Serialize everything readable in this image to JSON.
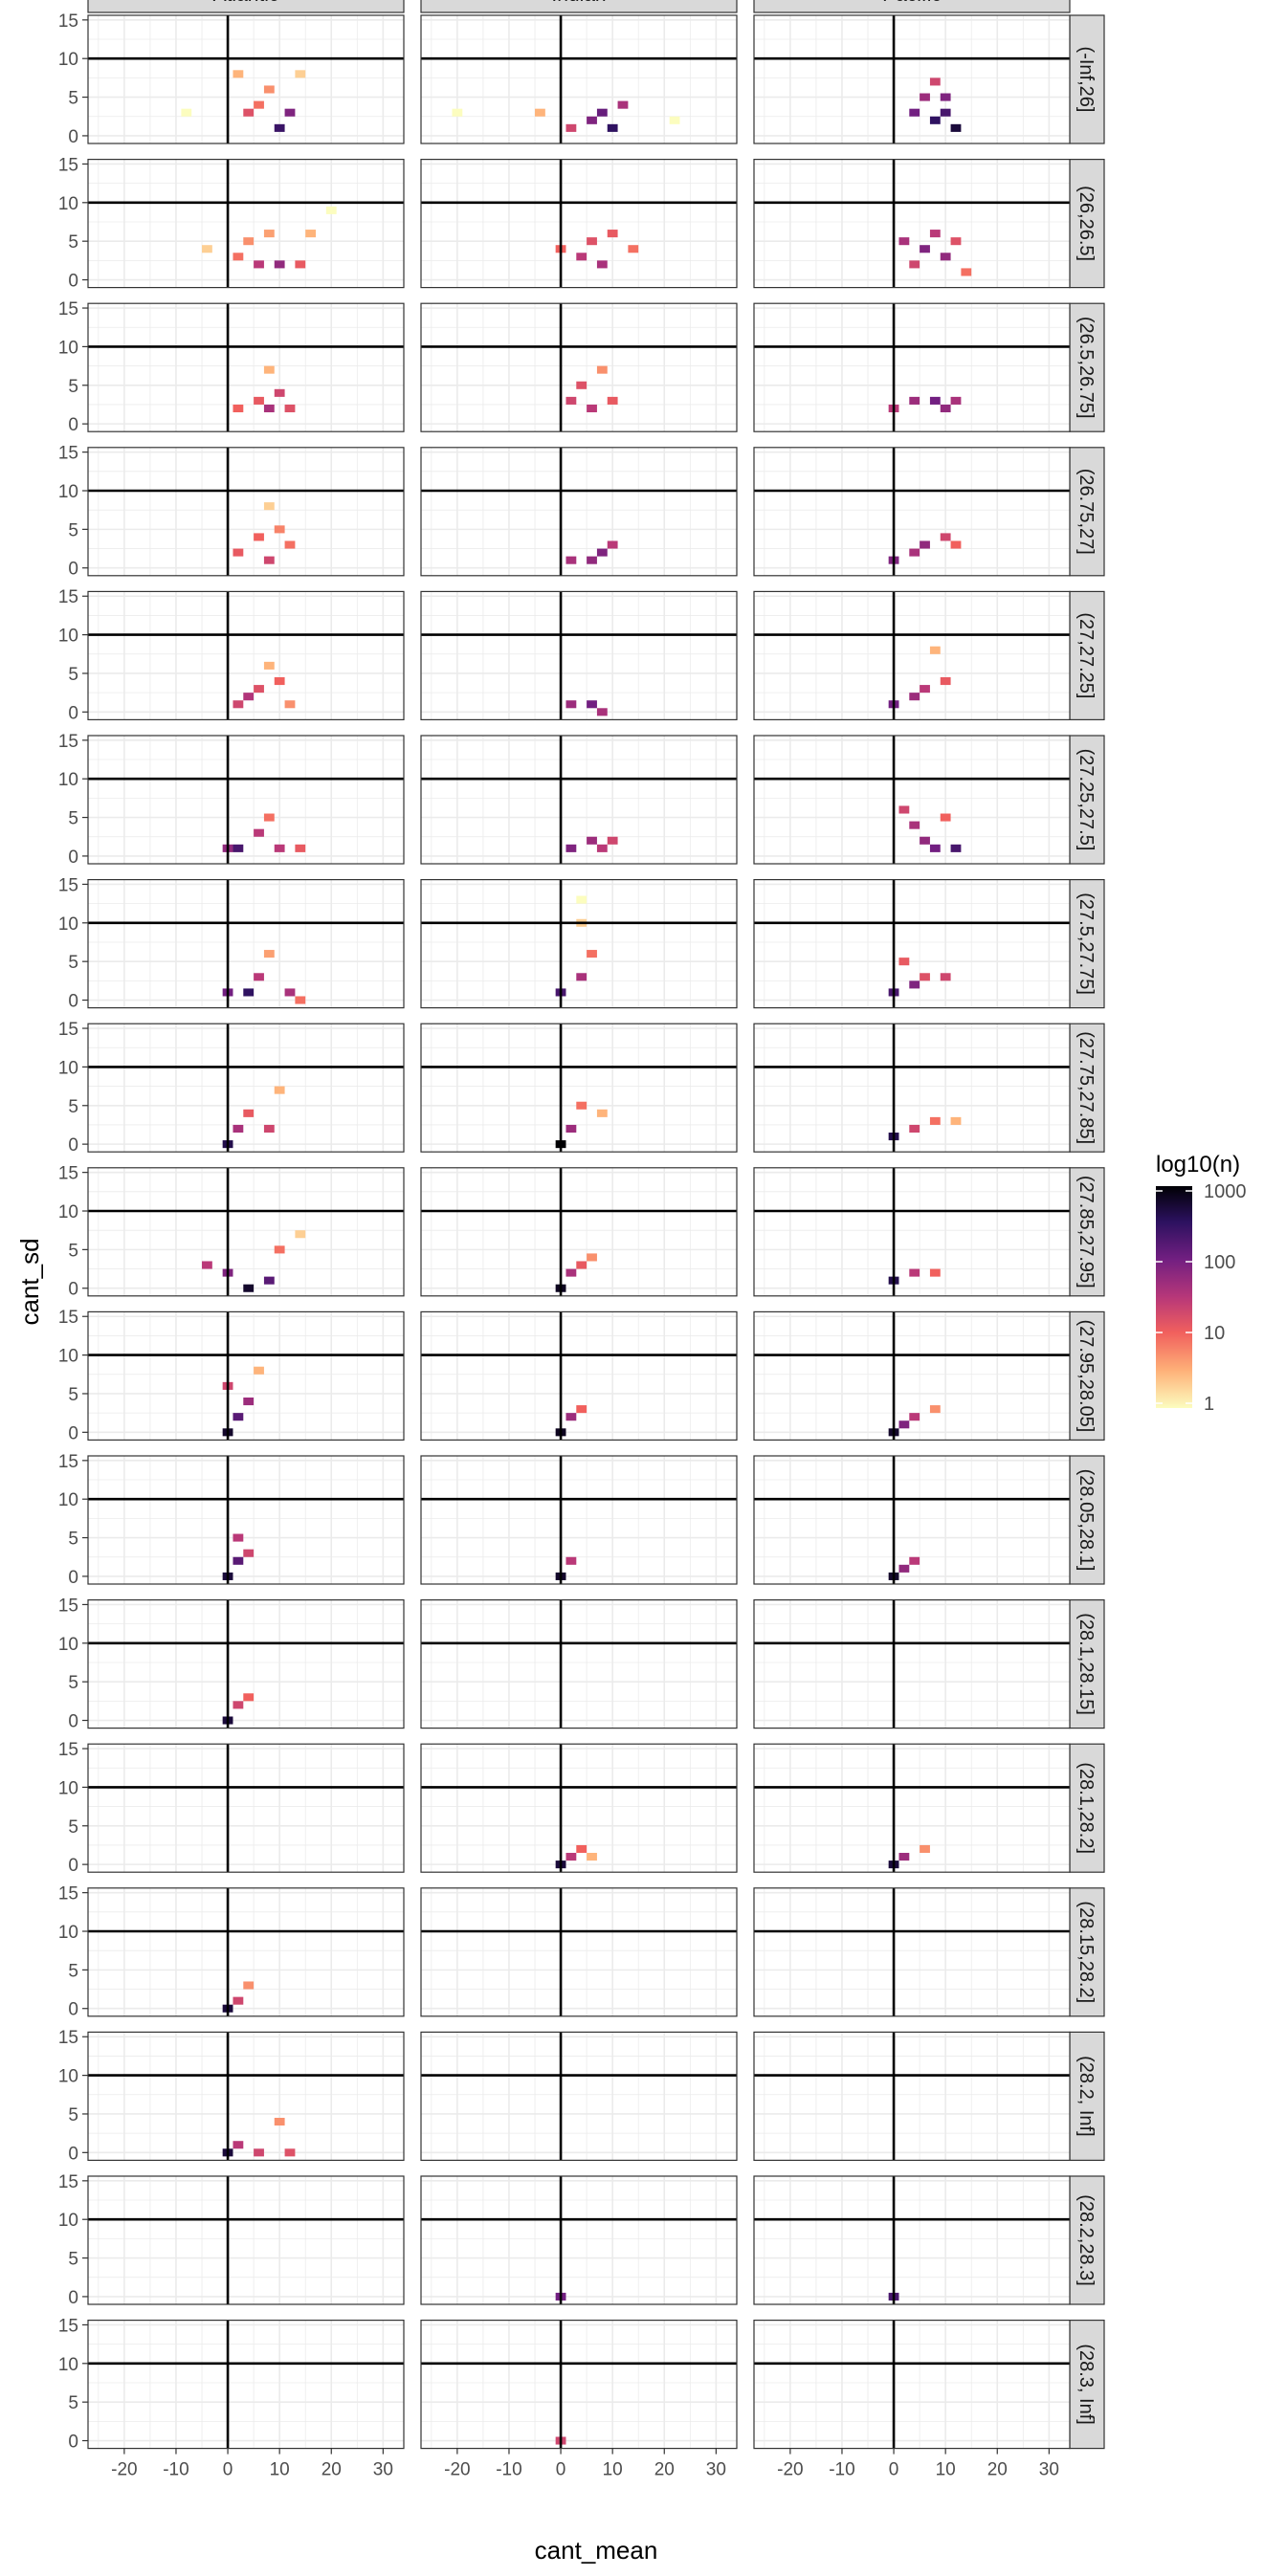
{
  "chart_data": {
    "type": "heatmap",
    "xlabel": "cant_mean",
    "ylabel": "cant_sd",
    "xlim": [
      -27,
      34
    ],
    "ylim": [
      -1,
      15.6
    ],
    "x_ticks": [
      -20,
      -10,
      0,
      10,
      20,
      30
    ],
    "y_ticks": [
      0,
      5,
      10,
      15
    ],
    "x_tick_labels": [
      "-20",
      "-10",
      "0",
      "10",
      "20",
      "30"
    ],
    "y_tick_labels": [
      "0",
      "5",
      "10",
      "15"
    ],
    "reference_lines": {
      "x": 0,
      "y": 10
    },
    "grid": true,
    "columns": [
      "Atlantic",
      "Indian",
      "Pacific"
    ],
    "rows": [
      "(-Inf,26]",
      "(26,26.5]",
      "(26.5,26.75]",
      "(26.75,27]",
      "(27,27.25]",
      "(27.25,27.5]",
      "(27.5,27.75]",
      "(27.75,27.85]",
      "(27.85,27.95]",
      "(27.95,28.05]",
      "(28.05,28.1]",
      "(28.1,28.15]",
      "(28.1,28.2]",
      "(28.15,28.2]",
      "(28.2, Inf]",
      "(28.2,28.3]",
      "(28.3, Inf]"
    ],
    "legend": {
      "title": "log10(n)",
      "position": "right",
      "breaks": [
        1,
        10,
        100,
        1000
      ],
      "labels": [
        "1",
        "10",
        "100",
        "1000"
      ],
      "colors": [
        "#fcfdbf",
        "#feb078",
        "#f1605d",
        "#b73779",
        "#721f81",
        "#2c115f",
        "#000004"
      ]
    },
    "cells": [
      [
        [
          [
            -8,
            3,
            1
          ],
          [
            2,
            8,
            3
          ],
          [
            6,
            4,
            8
          ],
          [
            10,
            1,
            250
          ],
          [
            4,
            3,
            15
          ],
          [
            8,
            6,
            5
          ],
          [
            12,
            3,
            80
          ],
          [
            14,
            8,
            2
          ]
        ],
        [
          [
            -4,
            4,
            2
          ],
          [
            2,
            3,
            8
          ],
          [
            6,
            2,
            30
          ],
          [
            10,
            2,
            60
          ],
          [
            4,
            5,
            5
          ],
          [
            8,
            6,
            4
          ],
          [
            14,
            2,
            12
          ],
          [
            16,
            6,
            3
          ],
          [
            20,
            9,
            1
          ]
        ],
        [
          [
            2,
            2,
            10
          ],
          [
            6,
            3,
            12
          ],
          [
            8,
            2,
            40
          ],
          [
            10,
            4,
            20
          ],
          [
            8,
            7,
            3
          ],
          [
            12,
            2,
            15
          ]
        ],
        [
          [
            2,
            2,
            12
          ],
          [
            6,
            4,
            10
          ],
          [
            8,
            1,
            20
          ],
          [
            10,
            5,
            6
          ],
          [
            12,
            3,
            8
          ],
          [
            8,
            8,
            2
          ]
        ],
        [
          [
            2,
            1,
            20
          ],
          [
            4,
            2,
            35
          ],
          [
            6,
            3,
            15
          ],
          [
            10,
            4,
            10
          ],
          [
            8,
            6,
            3
          ],
          [
            12,
            1,
            5
          ]
        ],
        [
          [
            0,
            1,
            60
          ],
          [
            2,
            1,
            200
          ],
          [
            6,
            3,
            30
          ],
          [
            8,
            5,
            8
          ],
          [
            10,
            1,
            30
          ],
          [
            14,
            1,
            12
          ]
        ],
        [
          [
            0,
            1,
            100
          ],
          [
            4,
            1,
            300
          ],
          [
            6,
            3,
            30
          ],
          [
            8,
            6,
            4
          ],
          [
            12,
            1,
            40
          ],
          [
            14,
            0,
            8
          ]
        ],
        [
          [
            0,
            0,
            400
          ],
          [
            2,
            2,
            40
          ],
          [
            4,
            4,
            12
          ],
          [
            8,
            2,
            20
          ],
          [
            10,
            7,
            3
          ]
        ],
        [
          [
            -4,
            3,
            30
          ],
          [
            0,
            2,
            80
          ],
          [
            4,
            0,
            600
          ],
          [
            8,
            1,
            150
          ],
          [
            10,
            5,
            8
          ],
          [
            14,
            7,
            2
          ]
        ],
        [
          [
            0,
            0,
            600
          ],
          [
            2,
            2,
            150
          ],
          [
            4,
            4,
            50
          ],
          [
            0,
            6,
            20
          ],
          [
            6,
            8,
            3
          ]
        ],
        [
          [
            0,
            0,
            500
          ],
          [
            2,
            2,
            150
          ],
          [
            2,
            5,
            30
          ],
          [
            4,
            3,
            20
          ]
        ],
        [
          [
            0,
            0,
            500
          ],
          [
            2,
            2,
            20
          ],
          [
            4,
            3,
            10
          ]
        ],
        [],
        [
          [
            0,
            0,
            500
          ],
          [
            2,
            1,
            20
          ],
          [
            4,
            3,
            5
          ]
        ],
        [
          [
            0,
            0,
            500
          ],
          [
            2,
            1,
            30
          ],
          [
            6,
            0,
            20
          ],
          [
            10,
            4,
            5
          ],
          [
            12,
            0,
            15
          ]
        ],
        [],
        []
      ],
      [
        [
          [
            -20,
            3,
            1
          ],
          [
            -4,
            3,
            3
          ],
          [
            2,
            1,
            20
          ],
          [
            6,
            2,
            80
          ],
          [
            8,
            3,
            120
          ],
          [
            10,
            1,
            300
          ],
          [
            12,
            4,
            40
          ],
          [
            22,
            2,
            1
          ]
        ],
        [
          [
            0,
            4,
            10
          ],
          [
            4,
            3,
            30
          ],
          [
            6,
            5,
            15
          ],
          [
            8,
            2,
            40
          ],
          [
            10,
            6,
            12
          ],
          [
            14,
            4,
            8
          ]
        ],
        [
          [
            2,
            3,
            20
          ],
          [
            4,
            5,
            15
          ],
          [
            6,
            2,
            30
          ],
          [
            8,
            7,
            5
          ],
          [
            10,
            3,
            12
          ]
        ],
        [
          [
            2,
            1,
            40
          ],
          [
            6,
            1,
            60
          ],
          [
            8,
            2,
            80
          ],
          [
            10,
            3,
            30
          ]
        ],
        [
          [
            2,
            1,
            50
          ],
          [
            6,
            1,
            100
          ],
          [
            8,
            0,
            40
          ]
        ],
        [
          [
            2,
            1,
            80
          ],
          [
            6,
            2,
            50
          ],
          [
            8,
            1,
            30
          ],
          [
            10,
            2,
            20
          ]
        ],
        [
          [
            0,
            1,
            200
          ],
          [
            4,
            3,
            40
          ],
          [
            6,
            6,
            8
          ],
          [
            4,
            10,
            2
          ],
          [
            4,
            13,
            1
          ]
        ],
        [
          [
            0,
            0,
            1000
          ],
          [
            2,
            2,
            50
          ],
          [
            4,
            5,
            8
          ],
          [
            8,
            4,
            3
          ]
        ],
        [
          [
            0,
            0,
            700
          ],
          [
            2,
            2,
            40
          ],
          [
            4,
            3,
            12
          ],
          [
            6,
            4,
            5
          ]
        ],
        [
          [
            0,
            0,
            700
          ],
          [
            2,
            2,
            50
          ],
          [
            4,
            3,
            10
          ]
        ],
        [
          [
            0,
            0,
            600
          ],
          [
            2,
            2,
            30
          ]
        ],
        [],
        [
          [
            0,
            0,
            500
          ],
          [
            2,
            1,
            30
          ],
          [
            4,
            2,
            10
          ],
          [
            6,
            1,
            3
          ]
        ],
        [],
        [],
        [
          [
            0,
            0,
            100
          ]
        ],
        [
          [
            0,
            0,
            20
          ]
        ]
      ],
      [
        [
          [
            4,
            3,
            100
          ],
          [
            6,
            5,
            50
          ],
          [
            8,
            2,
            300
          ],
          [
            10,
            3,
            200
          ],
          [
            12,
            1,
            500
          ],
          [
            8,
            7,
            20
          ],
          [
            10,
            5,
            80
          ]
        ],
        [
          [
            2,
            5,
            40
          ],
          [
            4,
            2,
            20
          ],
          [
            6,
            4,
            80
          ],
          [
            8,
            6,
            30
          ],
          [
            10,
            3,
            60
          ],
          [
            12,
            5,
            15
          ],
          [
            14,
            1,
            8
          ]
        ],
        [
          [
            0,
            2,
            30
          ],
          [
            4,
            3,
            50
          ],
          [
            8,
            3,
            100
          ],
          [
            10,
            2,
            60
          ],
          [
            12,
            3,
            40
          ]
        ],
        [
          [
            0,
            1,
            80
          ],
          [
            4,
            2,
            40
          ],
          [
            6,
            3,
            60
          ],
          [
            10,
            4,
            20
          ],
          [
            12,
            3,
            10
          ]
        ],
        [
          [
            0,
            1,
            100
          ],
          [
            4,
            2,
            50
          ],
          [
            6,
            3,
            30
          ],
          [
            8,
            8,
            3
          ],
          [
            10,
            4,
            12
          ]
        ],
        [
          [
            2,
            6,
            20
          ],
          [
            4,
            4,
            40
          ],
          [
            6,
            2,
            60
          ],
          [
            8,
            1,
            100
          ],
          [
            12,
            1,
            200
          ],
          [
            10,
            5,
            10
          ]
        ],
        [
          [
            0,
            1,
            200
          ],
          [
            4,
            2,
            80
          ],
          [
            6,
            3,
            15
          ],
          [
            10,
            3,
            20
          ],
          [
            2,
            5,
            12
          ]
        ],
        [
          [
            0,
            1,
            400
          ],
          [
            4,
            2,
            20
          ],
          [
            8,
            3,
            8
          ],
          [
            12,
            3,
            3
          ]
        ],
        [
          [
            0,
            1,
            400
          ],
          [
            4,
            2,
            30
          ],
          [
            8,
            2,
            10
          ]
        ],
        [
          [
            0,
            0,
            600
          ],
          [
            2,
            1,
            80
          ],
          [
            4,
            2,
            30
          ],
          [
            8,
            3,
            5
          ]
        ],
        [
          [
            0,
            0,
            600
          ],
          [
            2,
            1,
            60
          ],
          [
            4,
            2,
            30
          ]
        ],
        [],
        [
          [
            0,
            0,
            500
          ],
          [
            2,
            1,
            50
          ],
          [
            6,
            2,
            5
          ]
        ],
        [],
        [],
        [
          [
            0,
            0,
            200
          ]
        ],
        []
      ]
    ]
  }
}
